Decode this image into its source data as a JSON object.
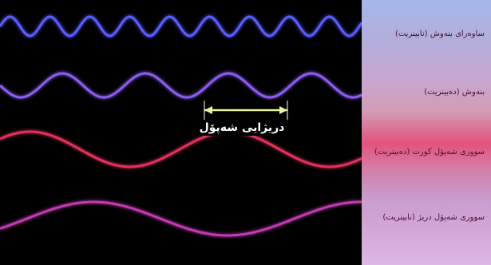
{
  "bands": [
    {
      "label": "ساوەرای بنەوش (نابینریت)",
      "color": "#5a5cff"
    },
    {
      "label": "بنەوش (دەبینریت)",
      "color": "#8a5cf0"
    },
    {
      "label": "سووری شەپۆل کورت (دەبینریت)",
      "color": "#e0305a"
    },
    {
      "label": "سووری شەپۆل دریژ (نابینریت)",
      "color": "#c03ab0"
    }
  ],
  "wavelength_label": "دریژایی شەپۆل",
  "arrow_color": "#e8f5a0"
}
